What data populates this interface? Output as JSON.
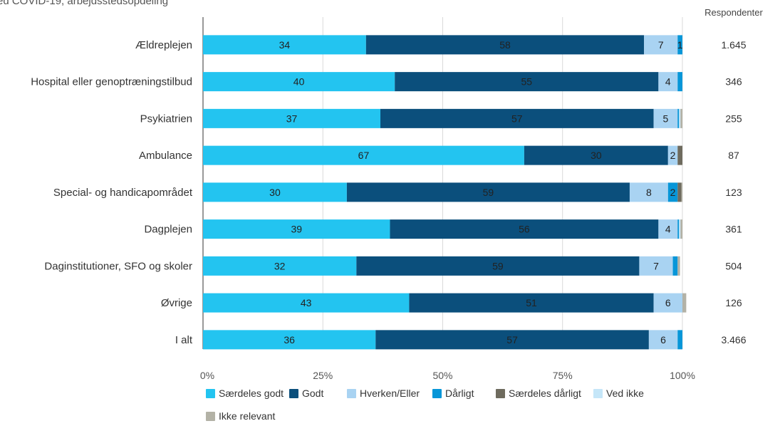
{
  "title_fragment": "ed COVID-19, arbejdsstedsopdeling",
  "respondents_header": "Respondenter",
  "chart_data": {
    "type": "bar",
    "orientation": "horizontal",
    "stacked": true,
    "percent": true,
    "xlim": [
      0,
      100
    ],
    "x_ticks": [
      "0%",
      "25%",
      "50%",
      "75%",
      "100%"
    ],
    "grid": true,
    "legend_position": "bottom",
    "categories": [
      "Ældreplejen",
      "Hospital eller genoptræningstilbud",
      "Psykiatrien",
      "Ambulance",
      "Special- og handicapområdet",
      "Dagplejen",
      "Daginstitutioner, SFO og skoler",
      "Øvrige",
      "I alt"
    ],
    "respondents": [
      "1.645",
      "346",
      "255",
      "87",
      "123",
      "361",
      "504",
      "126",
      "3.466"
    ],
    "series": [
      {
        "name": "Særdeles godt",
        "color": "#23C4F0",
        "values": [
          34,
          40,
          37,
          67,
          30,
          39,
          32,
          43,
          36
        ],
        "labels": [
          "34",
          "40",
          "37",
          "67",
          "30",
          "39",
          "32",
          "43",
          "36"
        ]
      },
      {
        "name": "Godt",
        "color": "#0B4F7C",
        "values": [
          58,
          55,
          57,
          30,
          59,
          56,
          59,
          51,
          57
        ],
        "labels": [
          "58",
          "55",
          "57",
          "30",
          "59",
          "56",
          "59",
          "51",
          "57"
        ]
      },
      {
        "name": "Hverken/Eller",
        "color": "#A9D3F2",
        "values": [
          7,
          4,
          5,
          2,
          8,
          4,
          7,
          6,
          6
        ],
        "labels": [
          "7",
          "4",
          "5",
          "2",
          "8",
          "4",
          "7",
          "6",
          "6"
        ]
      },
      {
        "name": "Dårligt",
        "color": "#0796D8",
        "values": [
          1,
          1,
          0.3,
          0,
          2,
          0.3,
          1,
          0,
          1
        ],
        "labels": [
          "1",
          "",
          "",
          "",
          "2",
          "",
          "",
          "",
          ""
        ]
      },
      {
        "name": "Særdeles dårligt",
        "color": "#6E6B5E",
        "values": [
          0,
          0,
          0,
          1,
          0.8,
          0,
          0,
          0,
          0
        ],
        "labels": [
          "",
          "",
          "",
          "",
          "",
          "",
          "",
          "",
          ""
        ]
      },
      {
        "name": "Ved ikke",
        "color": "#C5E6F8",
        "values": [
          0,
          0,
          0.3,
          0,
          0,
          0.3,
          0,
          0,
          0
        ],
        "labels": [
          "",
          "",
          "",
          "",
          "",
          "",
          "",
          "",
          ""
        ]
      },
      {
        "name": "Ikke relevant",
        "color": "#B3B2A6",
        "values": [
          0,
          0,
          0.4,
          0,
          0.2,
          0.4,
          0.5,
          0.8,
          0
        ],
        "labels": [
          "",
          "",
          "",
          "",
          "",
          "",
          "",
          "",
          ""
        ]
      }
    ]
  }
}
